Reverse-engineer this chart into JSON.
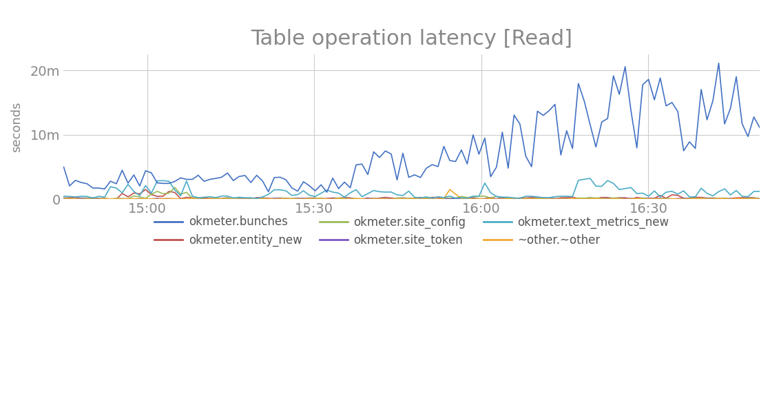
{
  "title": "Table operation latency [Read]",
  "ylabel": "seconds",
  "background_color": "#ffffff",
  "title_color": "#888888",
  "title_fontsize": 22,
  "grid_color": "#cccccc",
  "ytick_labels": [
    "0",
    "10m",
    "20m"
  ],
  "xtick_labels": [
    "15:00",
    "15:30",
    "16:00",
    "16:30"
  ],
  "colors": {
    "bunches": "#4472c4",
    "entity_new": "#c0504d",
    "site_config": "#9bbb59",
    "site_token": "#7e57c2",
    "text_metrics_new": "#4bacc6",
    "other": "#f0a830"
  },
  "legend_labels": [
    "okmeter.bunches",
    "okmeter.entity_new",
    "okmeter.site_config",
    "okmeter.site_token",
    "okmeter.text_metrics_new",
    "~other.~other"
  ]
}
